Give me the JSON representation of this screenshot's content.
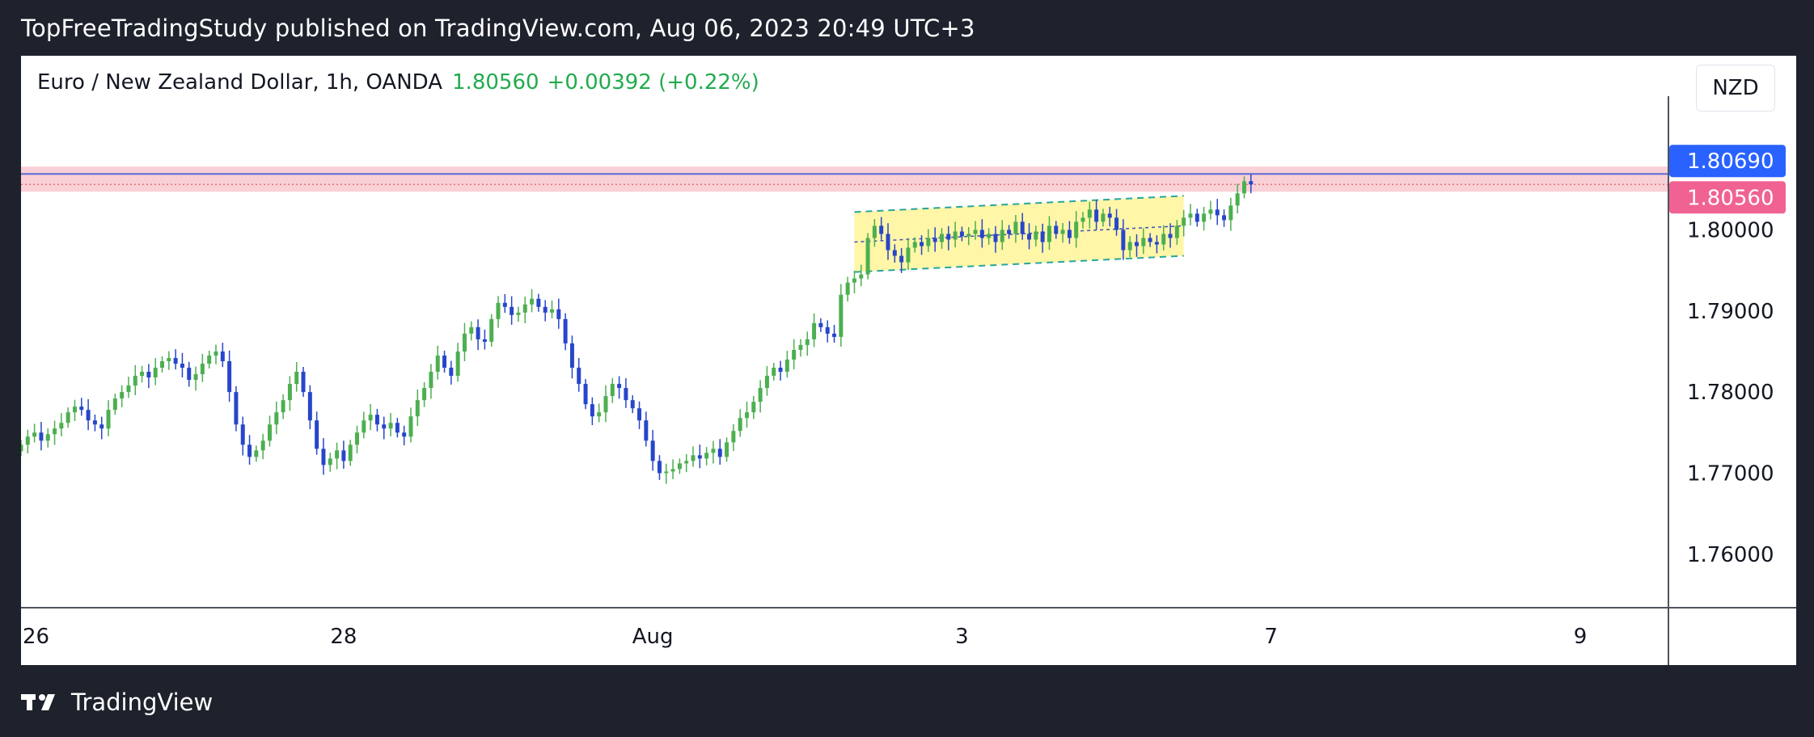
{
  "header": {
    "publish_line": "TopFreeTradingStudy published on TradingView.com, Aug 06, 2023 20:49 UTC+3"
  },
  "symbol": {
    "name": "Euro / New Zealand Dollar, 1h, OANDA",
    "price": "1.80560",
    "change": "+0.00392 (+0.22%)",
    "currency": "NZD"
  },
  "price_tags": [
    {
      "label": "1.80690",
      "value": 1.8069,
      "color": "#2962ff"
    },
    {
      "label": "1.80560",
      "value": 1.8056,
      "color": "#f06292"
    }
  ],
  "footer": {
    "brand": "TradingView"
  },
  "colors": {
    "up": "#4caf50",
    "down": "#2746c9",
    "channel_fill": "#fff59d",
    "channel_line": "#26a69a",
    "resistance_zone": "#f8c8cf"
  },
  "chart_data": {
    "type": "candlestick",
    "title": "",
    "ylim": [
      1.7535,
      1.8135
    ],
    "y_ticks": [
      1.8,
      1.79,
      1.78,
      1.77,
      1.76
    ],
    "y_tick_labels": [
      "1.80000",
      "1.79000",
      "1.78000",
      "1.77000",
      "1.76000"
    ],
    "x_ticks": [
      {
        "label": "26",
        "index": 0
      },
      {
        "label": "28",
        "index": 48
      },
      {
        "label": "Aug",
        "index": 94
      },
      {
        "label": "3",
        "index": 140
      },
      {
        "label": "7",
        "index": 186
      },
      {
        "label": "9",
        "index": 232
      }
    ],
    "x_range": [
      0,
      245
    ],
    "resistance_zone": [
      1.8047,
      1.8078
    ],
    "channel": {
      "start_index": 124,
      "end_index": 173,
      "upper": [
        1.8022,
        1.8042
      ],
      "lower": [
        1.7948,
        1.7968
      ]
    },
    "ohlc_close": [
      1.7735,
      1.7745,
      1.775,
      1.774,
      1.7748,
      1.7755,
      1.7762,
      1.7775,
      1.7782,
      1.7778,
      1.7765,
      1.776,
      1.7755,
      1.7778,
      1.7792,
      1.78,
      1.7808,
      1.782,
      1.7825,
      1.7818,
      1.783,
      1.7838,
      1.7842,
      1.7835,
      1.783,
      1.7815,
      1.7822,
      1.7835,
      1.7845,
      1.785,
      1.7838,
      1.78,
      1.776,
      1.7735,
      1.772,
      1.7728,
      1.774,
      1.776,
      1.7775,
      1.779,
      1.781,
      1.7825,
      1.78,
      1.7765,
      1.773,
      1.771,
      1.7718,
      1.7728,
      1.7715,
      1.7735,
      1.775,
      1.7765,
      1.7772,
      1.776,
      1.7755,
      1.7762,
      1.775,
      1.7745,
      1.777,
      1.779,
      1.7805,
      1.7825,
      1.7845,
      1.783,
      1.782,
      1.785,
      1.7872,
      1.788,
      1.7865,
      1.7862,
      1.789,
      1.791,
      1.7905,
      1.7895,
      1.7898,
      1.7908,
      1.7915,
      1.7905,
      1.7898,
      1.7902,
      1.789,
      1.786,
      1.783,
      1.781,
      1.7785,
      1.777,
      1.7775,
      1.7795,
      1.781,
      1.7805,
      1.779,
      1.778,
      1.7765,
      1.774,
      1.7715,
      1.77,
      1.7702,
      1.7705,
      1.7712,
      1.7715,
      1.7722,
      1.7718,
      1.7725,
      1.773,
      1.772,
      1.7738,
      1.7752,
      1.7768,
      1.7775,
      1.7788,
      1.7805,
      1.782,
      1.783,
      1.7825,
      1.784,
      1.7852,
      1.7858,
      1.7865,
      1.7885,
      1.788,
      1.7872,
      1.7868,
      1.792,
      1.7935,
      1.794,
      1.7945,
      1.799,
      1.8005,
      1.7995,
      1.7975,
      1.7968,
      1.796,
      1.7978,
      1.7985,
      1.798,
      1.799,
      1.7985,
      1.7995,
      1.7988,
      1.7998,
      1.7992,
      1.7995,
      1.8,
      1.799,
      1.7995,
      1.7985,
      1.8,
      1.7995,
      1.801,
      1.7995,
      1.7988,
      1.7998,
      1.7985,
      1.8005,
      1.7995,
      1.8,
      1.799,
      1.801,
      1.8015,
      1.8025,
      1.801,
      1.802,
      1.8015,
      1.8,
      1.7975,
      1.7985,
      1.798,
      1.799,
      1.7985,
      1.7982,
      1.7995,
      1.799,
      1.8005,
      1.8015,
      1.802,
      1.801,
      1.802,
      1.8025,
      1.8018,
      1.8012,
      1.803,
      1.8045,
      1.806,
      1.8056
    ]
  }
}
